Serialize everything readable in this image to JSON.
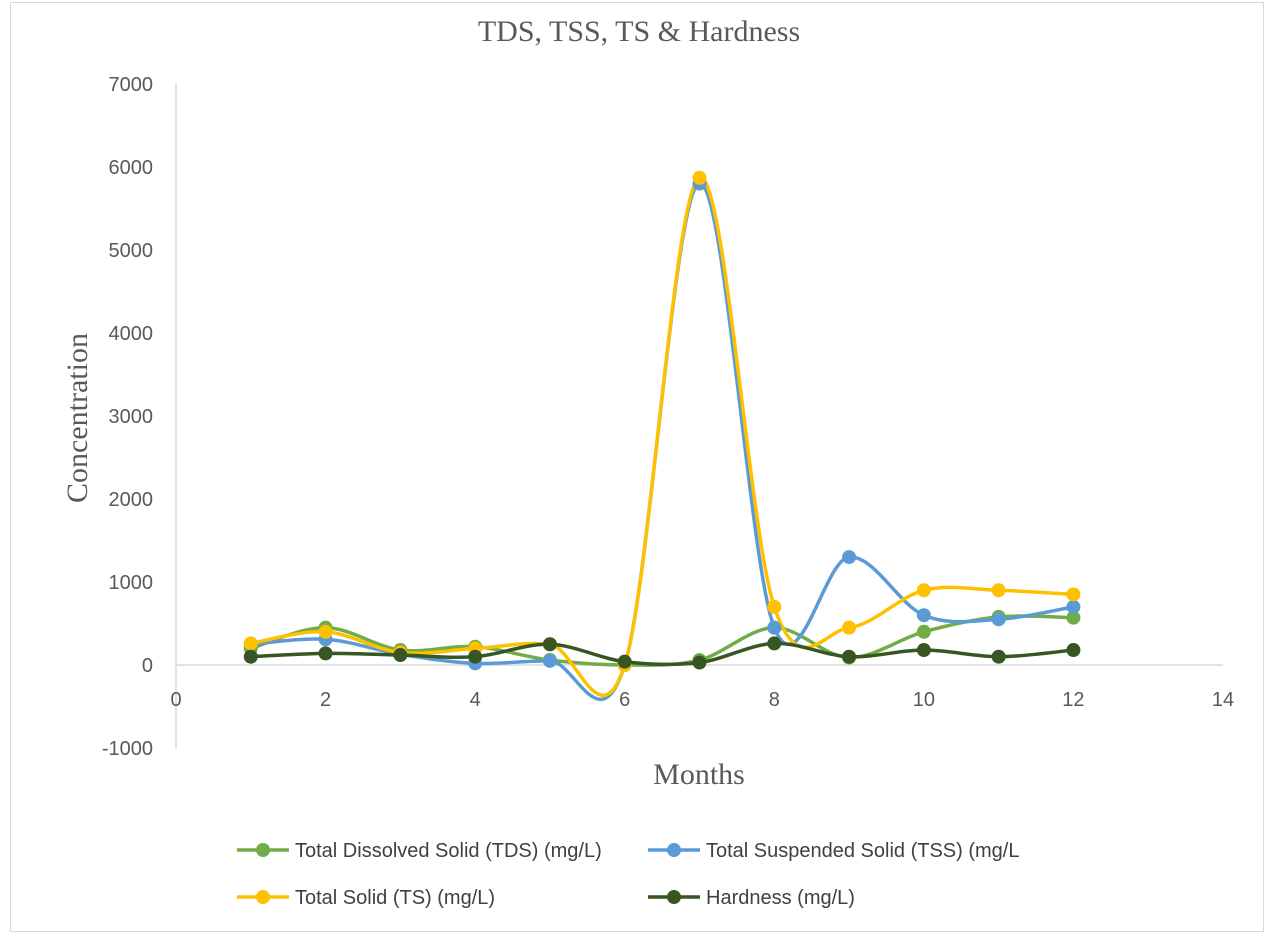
{
  "chart_data": {
    "type": "line",
    "title": "TDS, TSS, TS & Hardness",
    "xlabel": "Months",
    "ylabel": "Concentration",
    "xlim": [
      0,
      14
    ],
    "ylim": [
      -1000,
      7000
    ],
    "x_ticks": [
      0,
      2,
      4,
      6,
      8,
      10,
      12,
      14
    ],
    "y_ticks": [
      -1000,
      0,
      1000,
      2000,
      3000,
      4000,
      5000,
      6000,
      7000
    ],
    "x_tick_labels": [
      "0",
      "2",
      "4",
      "6",
      "8",
      "10",
      "12",
      "14"
    ],
    "y_tick_labels": [
      "-1000",
      "0",
      "1000",
      "2000",
      "3000",
      "4000",
      "5000",
      "6000",
      "7000"
    ],
    "smoothed": true,
    "grid": false,
    "legend_position": "bottom",
    "x": [
      1,
      2,
      3,
      4,
      5,
      6,
      7,
      8,
      9,
      10,
      11,
      12
    ],
    "series": [
      {
        "name": "Total Dissolved Solid (TDS) (mg/L)",
        "color": "#70ad47",
        "values": [
          200,
          450,
          180,
          220,
          60,
          0,
          60,
          450,
          90,
          400,
          580,
          570
        ]
      },
      {
        "name": "Total Suspended Solid (TSS) (mg/L",
        "color": "#5b9bd5",
        "values": [
          250,
          310,
          130,
          20,
          50,
          0,
          5800,
          450,
          1300,
          600,
          550,
          700
        ]
      },
      {
        "name": "Total Solid (TS) (mg/L)",
        "color": "#ffc000",
        "values": [
          260,
          400,
          150,
          200,
          250,
          0,
          5870,
          700,
          450,
          900,
          900,
          850
        ]
      },
      {
        "name": "Hardness (mg/L)",
        "color": "#375623",
        "values": [
          100,
          140,
          120,
          100,
          250,
          40,
          30,
          260,
          100,
          180,
          100,
          180
        ]
      }
    ]
  }
}
